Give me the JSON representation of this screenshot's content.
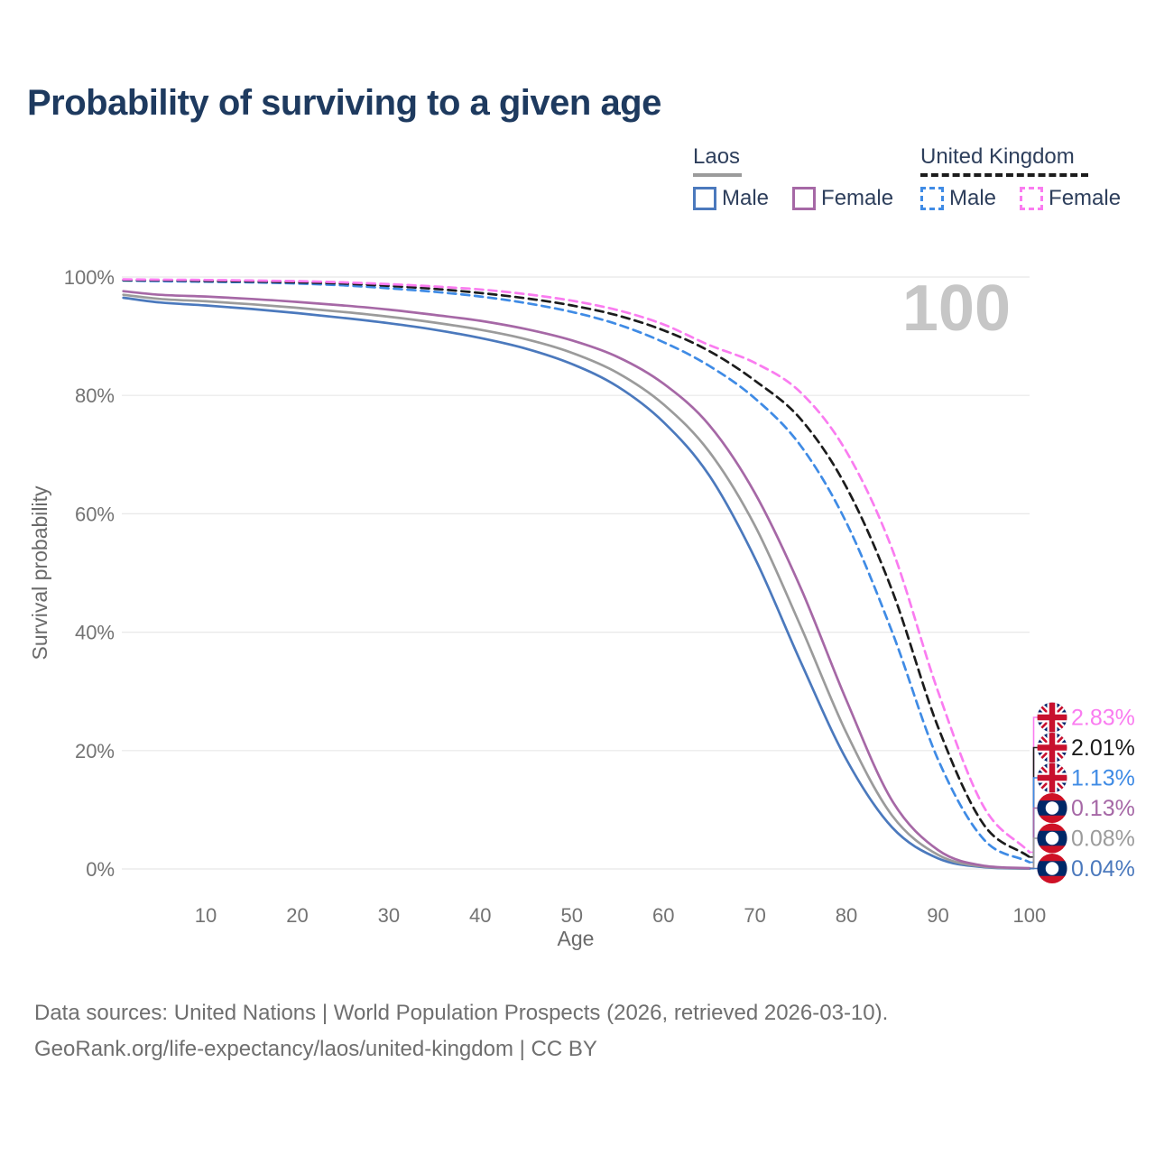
{
  "title": "Probability of surviving to a given age",
  "watermark": "100",
  "legend": {
    "laos": {
      "label": "Laos",
      "male": "Male",
      "female": "Female"
    },
    "uk": {
      "label": "United Kingdom",
      "male": "Male",
      "female": "Female"
    }
  },
  "colors": {
    "title": "#1e3a5f",
    "legend_text": "#2e3f5c",
    "grid": "#e8e8e8",
    "tick_text": "#737373",
    "axis_title_text": "#6a6a6a",
    "watermark": "#c6c6c6",
    "footer_text": "#6f6f6f"
  },
  "flags": {
    "uk": {
      "field": "#012169",
      "cross": "#C8102E",
      "white": "#ffffff"
    },
    "laos": {
      "red": "#CE1126",
      "blue": "#002868",
      "white": "#ffffff"
    }
  },
  "chart_data": {
    "type": "line",
    "x_label": "Age",
    "y_label": "Survival probability",
    "xlim": [
      1,
      100
    ],
    "ylim": [
      0,
      100
    ],
    "grid": true,
    "x_ticks": [
      10,
      20,
      30,
      40,
      50,
      60,
      70,
      80,
      90,
      100
    ],
    "y_ticks": [
      0,
      20,
      40,
      60,
      80,
      100
    ],
    "y_tick_suffix": "%",
    "ages": [
      1,
      5,
      10,
      15,
      20,
      25,
      30,
      35,
      40,
      45,
      50,
      55,
      60,
      65,
      70,
      75,
      80,
      85,
      90,
      95,
      100
    ],
    "series": [
      {
        "key": "laos_male",
        "country": "Laos",
        "sex": "Male",
        "style": "solid",
        "color": "#4b79bd",
        "values": [
          96.5,
          95.7,
          95.2,
          94.6,
          93.9,
          93.1,
          92.2,
          91.1,
          89.7,
          87.9,
          85.3,
          81.5,
          75.5,
          66.5,
          52.5,
          35.0,
          18.5,
          7.0,
          1.8,
          0.3,
          0.04
        ],
        "end_value_label": "0.04%"
      },
      {
        "key": "laos_both",
        "country": "Laos",
        "sex": "Both sexes",
        "style": "solid",
        "color": "#9b9b9b",
        "values": [
          97.0,
          96.3,
          95.9,
          95.4,
          94.8,
          94.1,
          93.3,
          92.3,
          91.1,
          89.5,
          87.2,
          83.8,
          78.5,
          70.5,
          58.0,
          41.0,
          23.0,
          9.0,
          2.4,
          0.4,
          0.08
        ],
        "end_value_label": "0.08%"
      },
      {
        "key": "laos_female",
        "country": "Laos",
        "sex": "Female",
        "style": "solid",
        "color": "#a668a6",
        "values": [
          97.6,
          97.0,
          96.7,
          96.3,
          95.8,
          95.2,
          94.5,
          93.6,
          92.6,
          91.2,
          89.3,
          86.5,
          82.0,
          75.0,
          63.5,
          47.5,
          28.5,
          11.5,
          3.2,
          0.55,
          0.13
        ],
        "end_value_label": "0.13%"
      },
      {
        "key": "uk_male",
        "country": "United Kingdom",
        "sex": "Male",
        "style": "dashed",
        "color": "#3f8be5",
        "values": [
          99.4,
          99.3,
          99.2,
          99.1,
          98.9,
          98.6,
          98.1,
          97.5,
          96.7,
          95.6,
          94.1,
          92.0,
          89.0,
          85.0,
          79.5,
          71.5,
          58.5,
          40.0,
          18.5,
          5.0,
          1.13
        ],
        "end_value_label": "1.13%"
      },
      {
        "key": "uk_both",
        "country": "United Kingdom",
        "sex": "Both sexes",
        "style": "dashed",
        "color": "#1c1c1c",
        "values": [
          99.5,
          99.45,
          99.35,
          99.25,
          99.1,
          98.9,
          98.5,
          98.0,
          97.3,
          96.4,
          95.2,
          93.5,
          91.0,
          87.5,
          82.5,
          76.0,
          64.5,
          47.0,
          24.0,
          7.5,
          2.01
        ],
        "end_value_label": "2.01%"
      },
      {
        "key": "uk_female",
        "country": "United Kingdom",
        "sex": "Female",
        "style": "dashed",
        "color": "#fa7cf0",
        "values": [
          99.6,
          99.55,
          99.5,
          99.4,
          99.3,
          99.1,
          98.8,
          98.4,
          97.9,
          97.1,
          96.0,
          94.4,
          92.0,
          88.5,
          85.5,
          80.5,
          70.5,
          54.0,
          30.0,
          10.5,
          2.83
        ],
        "end_value_label": "2.83%"
      }
    ],
    "end_labels": [
      {
        "text": "2.83%",
        "series_key": "uk_female",
        "flag": "uk"
      },
      {
        "text": "2.01%",
        "series_key": "uk_both",
        "flag": "uk"
      },
      {
        "text": "1.13%",
        "series_key": "uk_male",
        "flag": "uk"
      },
      {
        "text": "0.13%",
        "series_key": "laos_female",
        "flag": "laos"
      },
      {
        "text": "0.08%",
        "series_key": "laos_both",
        "flag": "laos"
      },
      {
        "text": "0.04%",
        "series_key": "laos_male",
        "flag": "laos"
      }
    ]
  },
  "footer": {
    "line1": "Data sources: United Nations | World Population Prospects (2026, retrieved 2026-03-10).",
    "line2": "GeoRank.org/life-expectancy/laos/united-kingdom | CC BY"
  }
}
